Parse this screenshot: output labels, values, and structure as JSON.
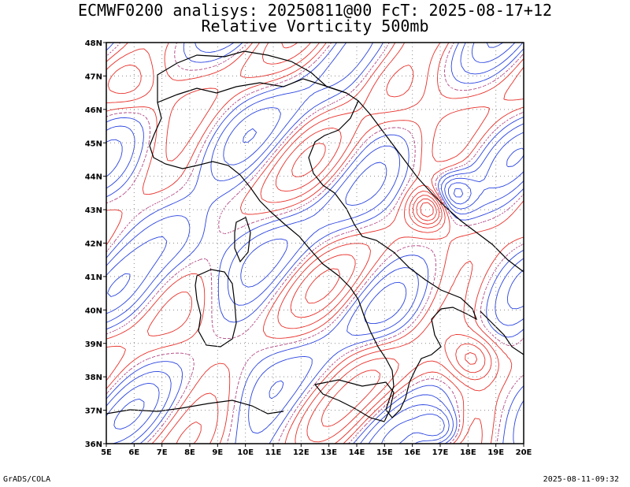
{
  "header": {
    "title_line1": "ECMWF0200 analisys: 20250811@00 FcT: 2025-08-17+12",
    "title_line2": "Relative Vorticity 500mb"
  },
  "map": {
    "lon_range": [
      5,
      20
    ],
    "lat_range": [
      36,
      48
    ],
    "lon_ticks": [
      "5E",
      "6E",
      "7E",
      "8E",
      "9E",
      "10E",
      "11E",
      "12E",
      "13E",
      "14E",
      "15E",
      "16E",
      "17E",
      "18E",
      "19E",
      "20E"
    ],
    "lat_ticks": [
      "36N",
      "37N",
      "38N",
      "39N",
      "40N",
      "41N",
      "42N",
      "43N",
      "44N",
      "45N",
      "46N",
      "47N",
      "48N"
    ],
    "grid": true,
    "colors": {
      "positive_contour": "#e8302a",
      "negative_contour": "#2a44e0",
      "zero_contour": "#b04080",
      "coastline": "#000000",
      "grid": "#8a8a8a"
    }
  },
  "footer": {
    "left": "GrADS/COLA",
    "right": "2025-08-11-09:32"
  }
}
